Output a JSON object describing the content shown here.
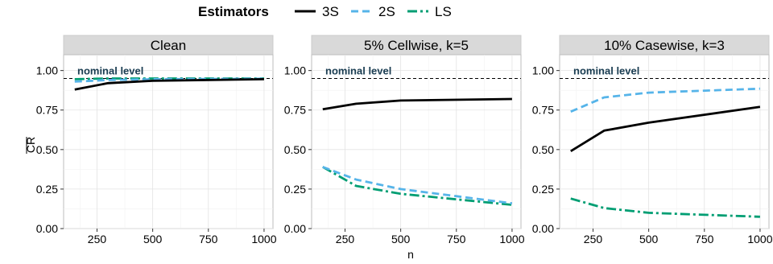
{
  "legend": {
    "title": "Estimators",
    "entries": [
      {
        "name": "3S",
        "color": "#000000",
        "dash": "solid"
      },
      {
        "name": "2S",
        "color": "#56b4e9",
        "dash": "dashed"
      },
      {
        "name": "LS",
        "color": "#009e73",
        "dash": "dashdot"
      }
    ]
  },
  "ylabel": "CR",
  "xlabel": "n",
  "nominal_label": "nominal level",
  "chart_data": [
    {
      "type": "line",
      "title": "Clean",
      "x": [
        150,
        300,
        500,
        1000
      ],
      "xticks": [
        250,
        500,
        750,
        1000
      ],
      "yticks": [
        0.0,
        0.25,
        0.5,
        0.75,
        1.0
      ],
      "ytick_labels": [
        "0.00",
        "0.25",
        "0.50",
        "0.75",
        "1.00"
      ],
      "xlim": [
        100,
        1040
      ],
      "ylim": [
        0,
        1.1
      ],
      "nominal": 0.95,
      "series": [
        {
          "name": "3S",
          "values": [
            0.88,
            0.92,
            0.935,
            0.945
          ]
        },
        {
          "name": "2S",
          "values": [
            0.93,
            0.94,
            0.945,
            0.948
          ]
        },
        {
          "name": "LS",
          "values": [
            0.945,
            0.95,
            0.95,
            0.95
          ]
        }
      ]
    },
    {
      "type": "line",
      "title": "5% Cellwise, k=5",
      "x": [
        150,
        300,
        500,
        1000
      ],
      "xticks": [
        250,
        500,
        750,
        1000
      ],
      "yticks": [
        0.0,
        0.25,
        0.5,
        0.75,
        1.0
      ],
      "ytick_labels": [
        "0.00",
        "0.25",
        "0.50",
        "0.75",
        "1.00"
      ],
      "xlim": [
        100,
        1040
      ],
      "ylim": [
        0,
        1.1
      ],
      "nominal": 0.95,
      "series": [
        {
          "name": "3S",
          "values": [
            0.755,
            0.79,
            0.81,
            0.82
          ]
        },
        {
          "name": "2S",
          "values": [
            0.39,
            0.31,
            0.25,
            0.16
          ]
        },
        {
          "name": "LS",
          "values": [
            0.39,
            0.27,
            0.22,
            0.15
          ]
        }
      ]
    },
    {
      "type": "line",
      "title": "10% Casewise, k=3",
      "x": [
        150,
        300,
        500,
        1000
      ],
      "xticks": [
        250,
        500,
        750,
        1000
      ],
      "yticks": [
        0.0,
        0.25,
        0.5,
        0.75,
        1.0
      ],
      "ytick_labels": [
        "0.00",
        "0.25",
        "0.50",
        "0.75",
        "1.00"
      ],
      "xlim": [
        100,
        1040
      ],
      "ylim": [
        0,
        1.1
      ],
      "nominal": 0.95,
      "series": [
        {
          "name": "3S",
          "values": [
            0.49,
            0.62,
            0.67,
            0.77
          ]
        },
        {
          "name": "2S",
          "values": [
            0.74,
            0.83,
            0.86,
            0.885
          ]
        },
        {
          "name": "LS",
          "values": [
            0.19,
            0.13,
            0.1,
            0.075
          ]
        }
      ]
    }
  ]
}
